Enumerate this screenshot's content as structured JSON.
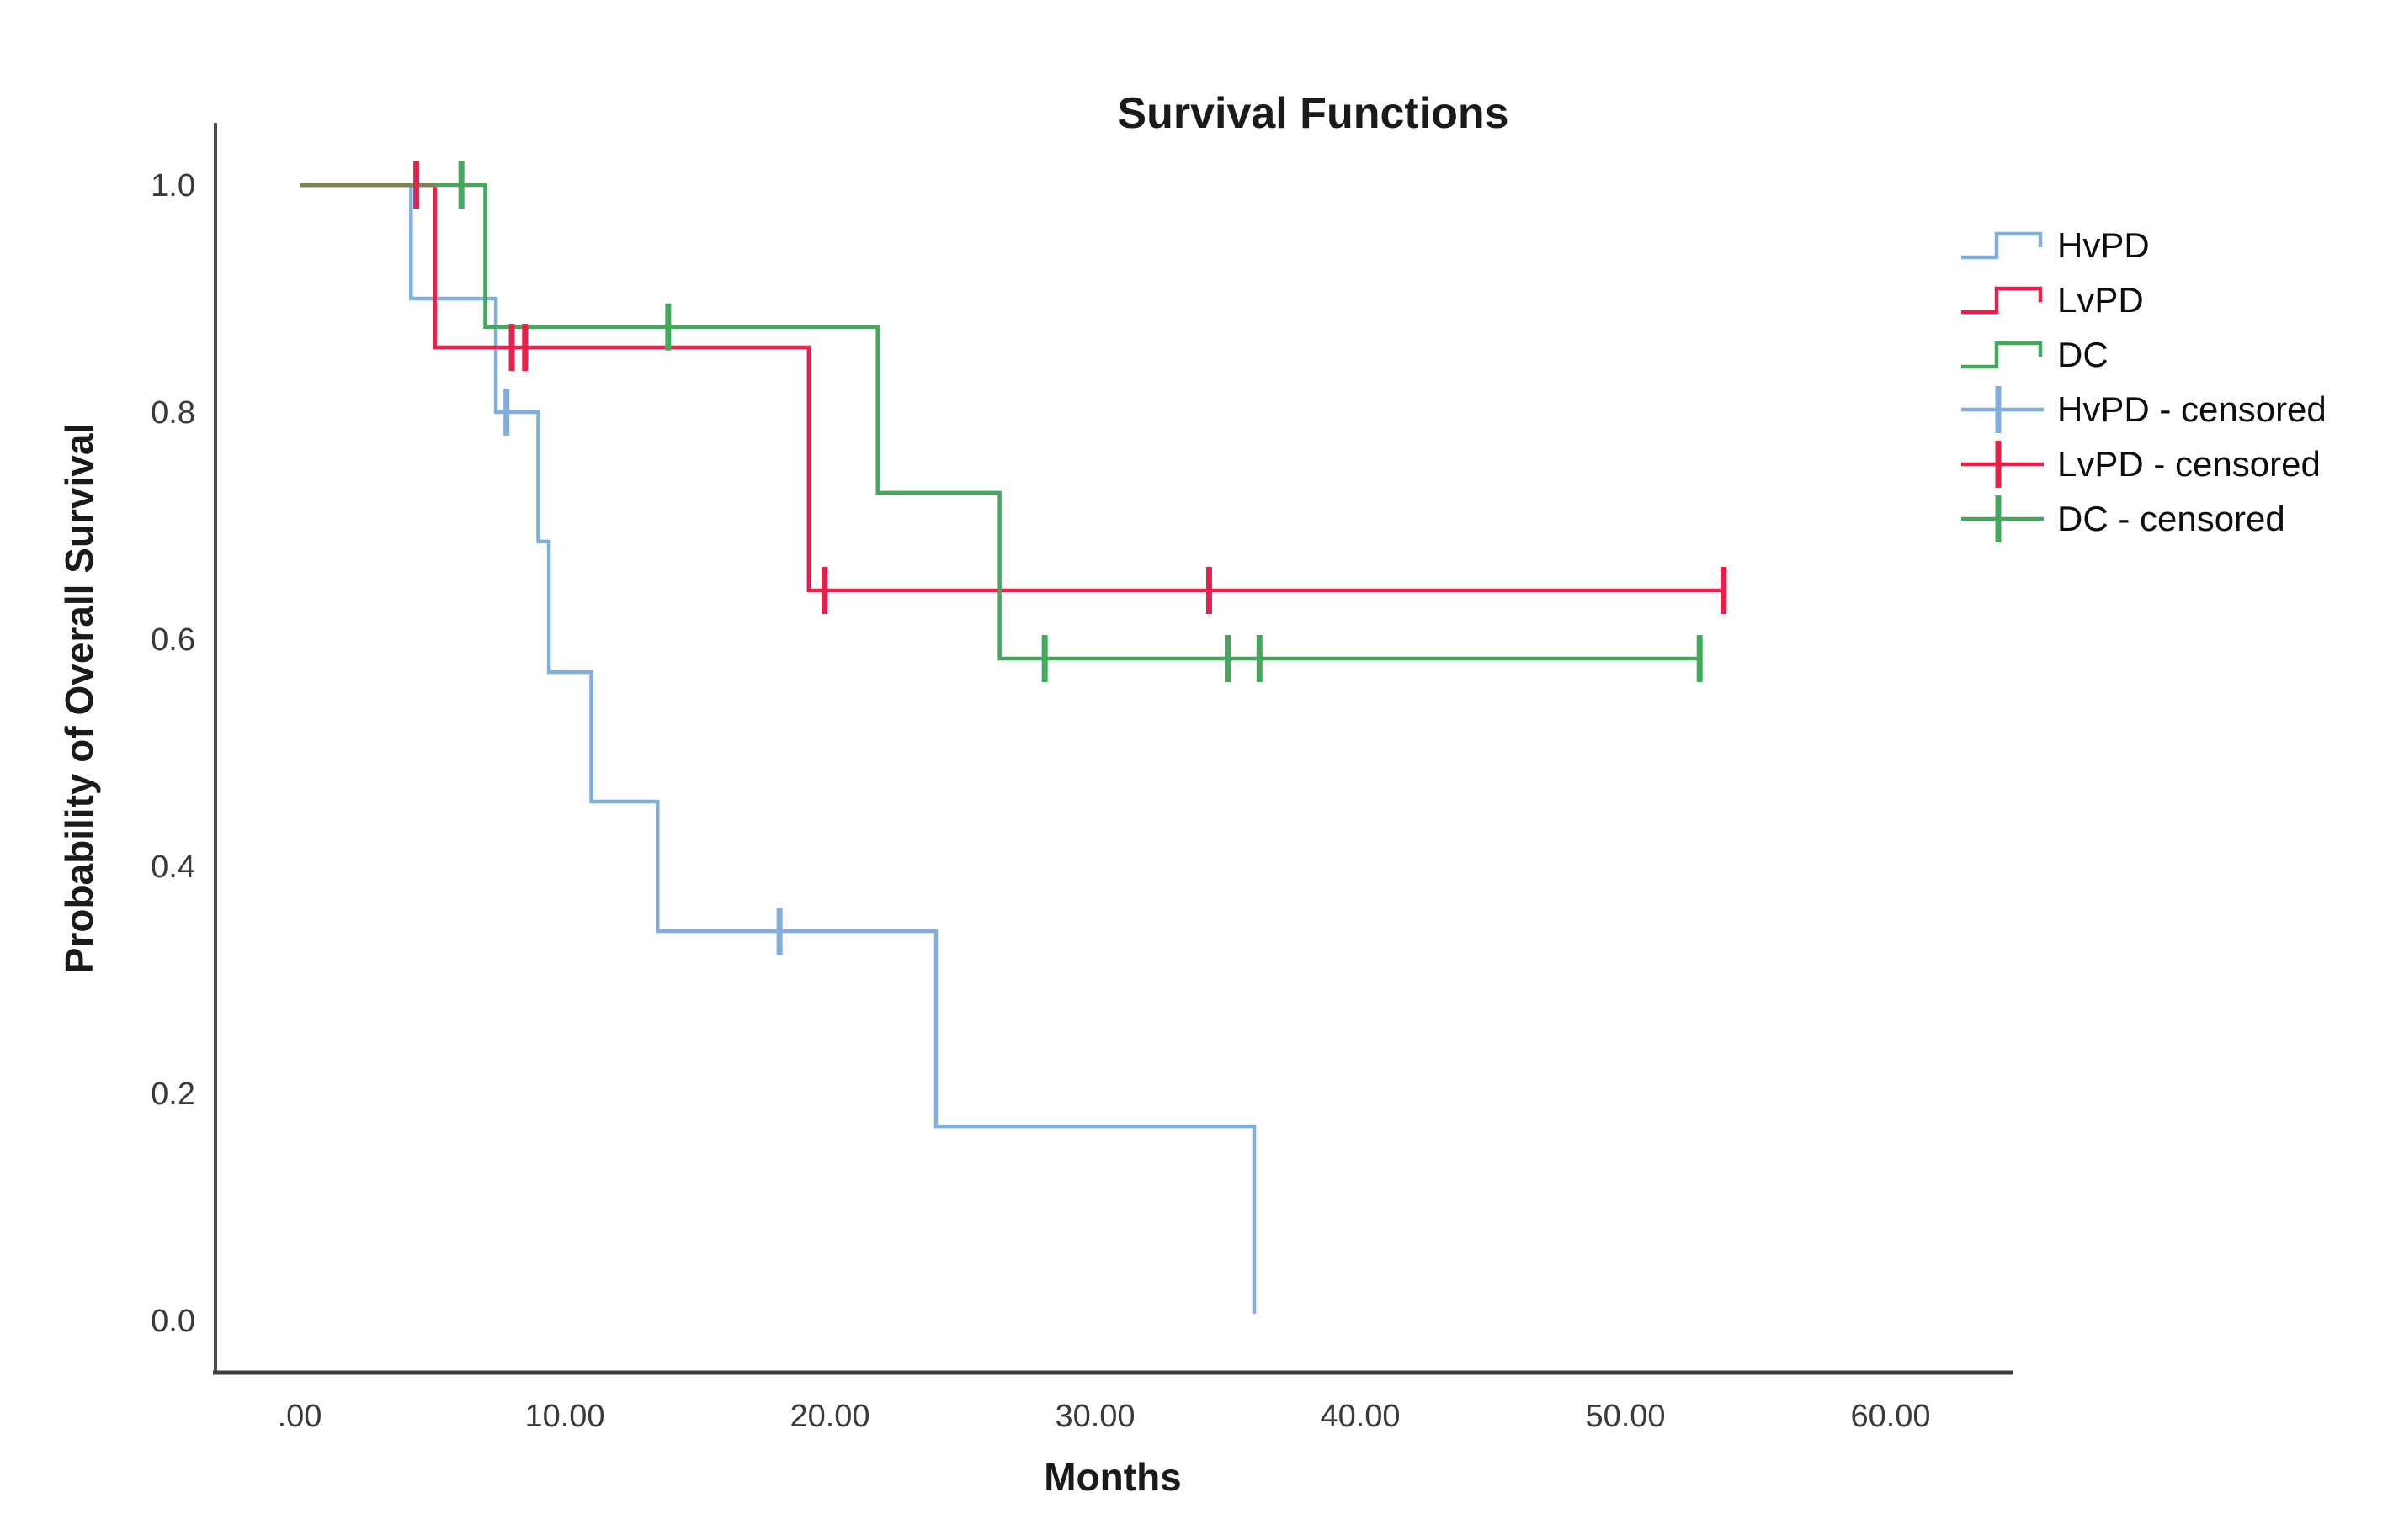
{
  "chart_data": {
    "type": "line",
    "subtype": "kaplan-meier-step",
    "title": "Survival Functions",
    "xlabel": "Months",
    "ylabel": "Probability of Overall Survival",
    "x_tick_labels": [
      ".00",
      "10.00",
      "20.00",
      "30.00",
      "40.00",
      "50.00",
      "60.00"
    ],
    "x_tick_values": [
      0,
      10,
      20,
      30,
      40,
      50,
      60
    ],
    "y_tick_labels": [
      "1.0",
      "0.8",
      "0.6",
      "0.4",
      "0.2",
      "0.0"
    ],
    "y_tick_values": [
      1.0,
      0.8,
      0.6,
      0.4,
      0.2,
      0.0
    ],
    "xlim": [
      0,
      64
    ],
    "ylim": [
      0,
      1.0
    ],
    "grid": false,
    "legend_position": "right",
    "series": [
      {
        "name": "HvPD",
        "color": "#7FAEDF",
        "steps": [
          [
            0,
            1.0
          ],
          [
            4.2,
            0.9
          ],
          [
            7.4,
            0.8
          ],
          [
            9.0,
            0.686
          ],
          [
            9.4,
            0.571
          ],
          [
            11.0,
            0.457
          ],
          [
            13.5,
            0.343
          ],
          [
            24.0,
            0.171
          ],
          [
            36.0,
            0.0
          ]
        ],
        "end_time": 36.0,
        "censored": [
          [
            7.8,
            0.8
          ],
          [
            18.1,
            0.343
          ]
        ]
      },
      {
        "name": "LvPD",
        "color": "#E81E4B",
        "steps": [
          [
            0,
            1.0
          ],
          [
            5.1,
            0.857
          ],
          [
            19.2,
            0.643
          ]
        ],
        "end_time": 53.7,
        "censored": [
          [
            4.4,
            1.0
          ],
          [
            8.0,
            0.857
          ],
          [
            8.5,
            0.857
          ],
          [
            19.8,
            0.643
          ],
          [
            34.3,
            0.643
          ],
          [
            53.7,
            0.643
          ]
        ]
      },
      {
        "name": "DC",
        "color": "#43A85C",
        "steps": [
          [
            0,
            1.0
          ],
          [
            7.0,
            0.875
          ],
          [
            21.8,
            0.729
          ],
          [
            26.4,
            0.583
          ]
        ],
        "end_time": 52.8,
        "censored": [
          [
            6.1,
            1.0
          ],
          [
            13.9,
            0.875
          ],
          [
            28.1,
            0.583
          ],
          [
            35.0,
            0.583
          ],
          [
            36.2,
            0.583
          ],
          [
            52.8,
            0.583
          ]
        ]
      }
    ],
    "legend": [
      {
        "label": "HvPD",
        "type": "line",
        "color": "#7FAEDF"
      },
      {
        "label": "LvPD",
        "type": "line",
        "color": "#E81E4B"
      },
      {
        "label": "DC",
        "type": "line",
        "color": "#43A85C"
      },
      {
        "label": "HvPD - censored",
        "type": "censored",
        "color": "#7FAEDF"
      },
      {
        "label": "LvPD - censored",
        "type": "censored",
        "color": "#E81E4B"
      },
      {
        "label": "DC - censored",
        "type": "censored",
        "color": "#43A85C"
      }
    ]
  }
}
